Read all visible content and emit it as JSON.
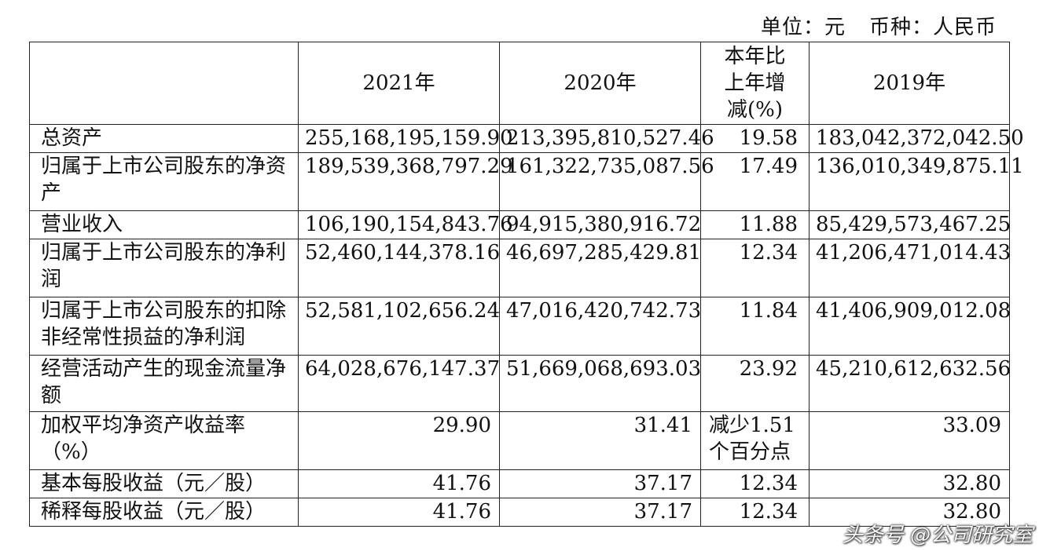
{
  "unit": {
    "unit_text": "单位：元",
    "currency_text": "币种：人民币"
  },
  "table": {
    "headers": {
      "item": "",
      "y2021": "2021年",
      "y2020": "2020年",
      "change": "本年比上年增减(%)",
      "y2019": "2019年"
    },
    "rows": [
      {
        "label": "总资产",
        "y2021": "255,168,195,159.90",
        "y2020": "213,395,810,527.46",
        "change": "19.58",
        "y2019": "183,042,372,042.50"
      },
      {
        "label": "归属于上市公司股东的净资产",
        "y2021": "189,539,368,797.29",
        "y2020": "161,322,735,087.56",
        "change": "17.49",
        "y2019": "136,010,349,875.11"
      },
      {
        "label": "营业收入",
        "y2021": "106,190,154,843.76",
        "y2020": "94,915,380,916.72",
        "change": "11.88",
        "y2019": "85,429,573,467.25"
      },
      {
        "label": "归属于上市公司股东的净利润",
        "y2021": "52,460,144,378.16",
        "y2020": "46,697,285,429.81",
        "change": "12.34",
        "y2019": "41,206,471,014.43"
      },
      {
        "label": "归属于上市公司股东的扣除非经常性损益的净利润",
        "y2021": "52,581,102,656.24",
        "y2020": "47,016,420,742.73",
        "change": "11.84",
        "y2019": "41,406,909,012.08"
      },
      {
        "label": "经营活动产生的现金流量净额",
        "y2021": "64,028,676,147.37",
        "y2020": "51,669,068,693.03",
        "change": "23.92",
        "y2019": "45,210,612,632.56"
      },
      {
        "label": "加权平均净资产收益率（%）",
        "y2021": "29.90",
        "y2020": "31.41",
        "change": "减少1.51个百分点",
        "y2019": "33.09"
      },
      {
        "label": "基本每股收益（元／股）",
        "y2021": "41.76",
        "y2020": "37.17",
        "change": "12.34",
        "y2019": "32.80"
      },
      {
        "label": "稀释每股收益（元／股）",
        "y2021": "41.76",
        "y2020": "37.17",
        "change": "12.34",
        "y2019": "32.80"
      }
    ]
  },
  "watermark": {
    "text": "头条号 @公司研究室"
  }
}
